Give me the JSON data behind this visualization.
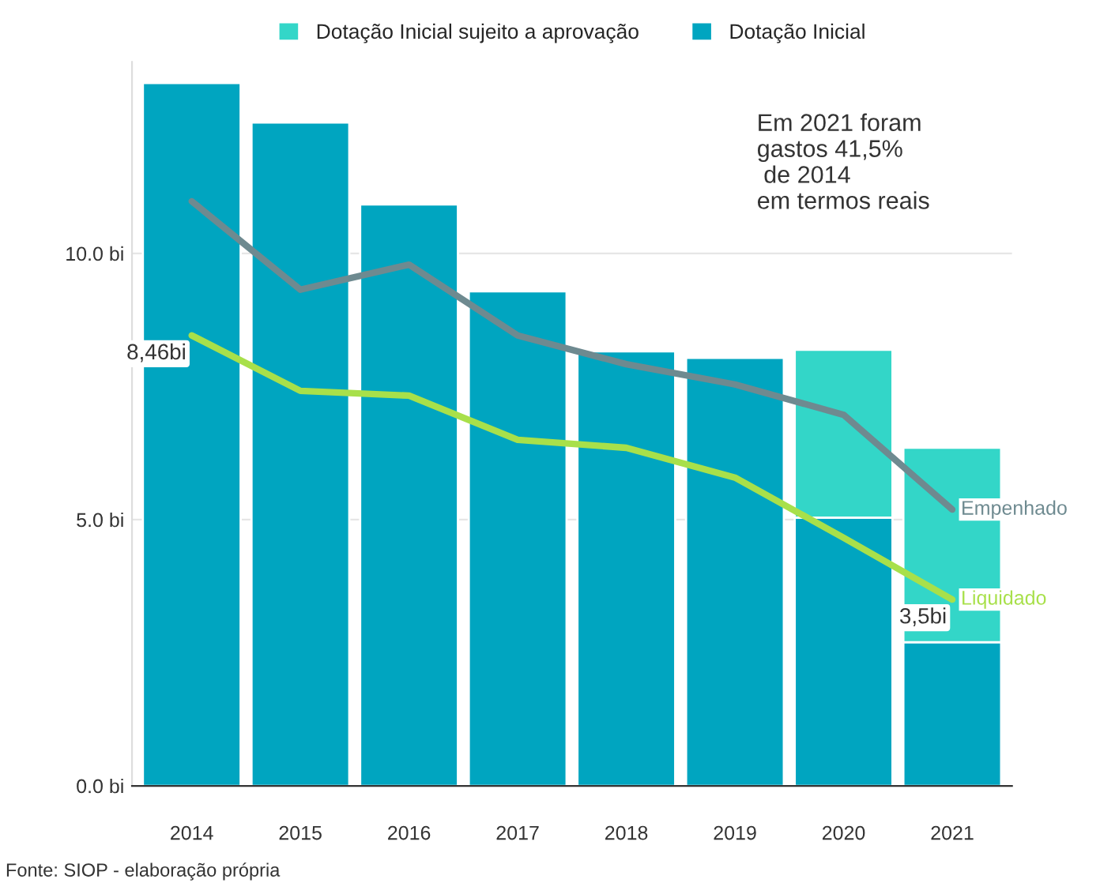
{
  "chart_data": {
    "type": "bar",
    "stacked": true,
    "categories": [
      "2014",
      "2015",
      "2016",
      "2017",
      "2018",
      "2019",
      "2020",
      "2021"
    ],
    "series": [
      {
        "name": "Dotação Inicial",
        "color": "#00a5c0",
        "values": [
          13.2,
          12.46,
          10.92,
          9.29,
          8.16,
          8.04,
          5.04,
          2.7
        ]
      },
      {
        "name": "Dotação Inicial sujeito a aprovação",
        "color": "#33d6c8",
        "values": [
          null,
          null,
          null,
          null,
          null,
          null,
          3.15,
          3.65
        ]
      },
      {
        "type": "line",
        "name": "Empenhado",
        "color": "#6e8a90",
        "values": [
          10.98,
          9.32,
          9.79,
          8.46,
          7.92,
          7.54,
          6.97,
          5.19
        ]
      },
      {
        "type": "line",
        "name": "Liquidado",
        "color": "#a8e04a",
        "values": [
          8.46,
          7.42,
          7.33,
          6.5,
          6.35,
          5.79,
          4.66,
          3.5
        ],
        "value_labels": [
          "8,46bi",
          null,
          null,
          null,
          null,
          null,
          null,
          "3,5bi"
        ]
      }
    ],
    "ylim": [
      0,
      13.6
    ],
    "yticks": [
      {
        "value": 0,
        "label": "0.0 bi"
      },
      {
        "value": 5,
        "label": "5.0 bi"
      },
      {
        "value": 10,
        "label": "10.0 bi"
      }
    ],
    "grid": "y",
    "legend": "top",
    "line_style": "solid",
    "marker": "none",
    "annotations": [
      "Em 2021 foram\ngastos 41,5%\n de 2014\nem termos reais",
      "Fonte: SIOP - elaboração própria"
    ]
  }
}
